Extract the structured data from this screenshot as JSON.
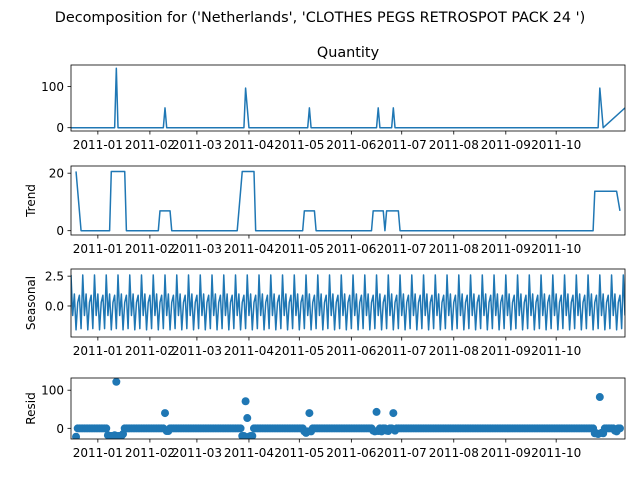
{
  "figure": {
    "suptitle": "Decomposition for ('Netherlands', 'CLOTHES PEGS RETROSPOT PACK 24 ')"
  },
  "colors": {
    "series": "#1f77b4",
    "axis": "#000000",
    "background": "#ffffff"
  },
  "x_axis": {
    "ticks": [
      "2011-01",
      "2011-02",
      "2011-03",
      "2011-04",
      "2011-05",
      "2011-06",
      "2011-07",
      "2011-08",
      "2011-09",
      "2011-10"
    ],
    "range": [
      "2010-12-16",
      "2011-11-11"
    ]
  },
  "chart_data": [
    {
      "type": "line",
      "title": "Quantity",
      "ylabel": "",
      "ylim": [
        -8,
        152
      ],
      "yticks": [
        "0",
        "100"
      ],
      "grid": false,
      "x": [
        "2010-12-16",
        "2010-12-17",
        "2011-01-11",
        "2011-01-12",
        "2011-01-13",
        "2011-02-09",
        "2011-02-10",
        "2011-02-11",
        "2011-03-29",
        "2011-03-30",
        "2011-04-01",
        "2011-05-06",
        "2011-05-07",
        "2011-05-08",
        "2011-06-16",
        "2011-06-17",
        "2011-06-18",
        "2011-06-25",
        "2011-06-26",
        "2011-06-27",
        "2011-10-26",
        "2011-10-27",
        "2011-10-29",
        "2011-11-11"
      ],
      "values": [
        0,
        0,
        0,
        144,
        0,
        0,
        48,
        0,
        0,
        96,
        0,
        0,
        48,
        0,
        0,
        48,
        0,
        0,
        48,
        0,
        0,
        96,
        0,
        48
      ]
    },
    {
      "type": "line",
      "title": "",
      "ylabel": "Trend",
      "ylim": [
        -1.5,
        22.5
      ],
      "yticks": [
        "0",
        "20"
      ],
      "grid": false,
      "x": [
        "2010-12-19",
        "2010-12-22",
        "2011-01-08",
        "2011-01-09",
        "2011-01-17",
        "2011-01-18",
        "2011-02-06",
        "2011-02-07",
        "2011-02-13",
        "2011-02-14",
        "2011-03-25",
        "2011-03-27",
        "2011-03-28",
        "2011-04-04",
        "2011-04-05",
        "2011-05-03",
        "2011-05-04",
        "2011-05-10",
        "2011-05-11",
        "2011-06-13",
        "2011-06-14",
        "2011-06-20",
        "2011-06-21",
        "2011-06-22",
        "2011-06-23",
        "2011-06-29",
        "2011-06-30",
        "2011-10-23",
        "2011-10-24",
        "2011-11-06",
        "2011-11-08"
      ],
      "values": [
        20.6,
        0,
        0,
        20.6,
        20.6,
        0,
        0,
        6.9,
        6.9,
        0,
        0,
        13.7,
        20.6,
        20.6,
        0,
        0,
        6.9,
        6.9,
        0,
        0,
        6.9,
        6.9,
        0,
        6.9,
        6.9,
        6.9,
        0,
        0,
        13.7,
        13.7,
        6.9
      ]
    },
    {
      "type": "line",
      "title": "",
      "ylabel": "Seasonal",
      "ylim": [
        -2.6,
        3.1
      ],
      "yticks": [
        "0.0",
        "2.5"
      ],
      "grid": false,
      "period_days": 7,
      "pattern": [
        2.6,
        -0.8,
        1.0,
        -2.0,
        0.3,
        0.9,
        -1.9
      ],
      "x_start": "2010-12-16",
      "x_end": "2011-11-11"
    },
    {
      "type": "scatter",
      "title": "",
      "ylabel": "Resid",
      "ylim": [
        -28,
        132
      ],
      "yticks": [
        "0",
        "100"
      ],
      "grid": false,
      "x_start": "2010-12-19",
      "x_end": "2011-11-08",
      "baseline": 0,
      "outliers": [
        {
          "x": "2010-12-19",
          "y": -22
        },
        {
          "x": "2011-01-07",
          "y": -18
        },
        {
          "x": "2011-01-08",
          "y": -20
        },
        {
          "x": "2011-01-09",
          "y": -20
        },
        {
          "x": "2011-01-10",
          "y": -20
        },
        {
          "x": "2011-01-11",
          "y": -18
        },
        {
          "x": "2011-01-12",
          "y": 122
        },
        {
          "x": "2011-01-13",
          "y": -20
        },
        {
          "x": "2011-01-14",
          "y": -20
        },
        {
          "x": "2011-01-15",
          "y": -20
        },
        {
          "x": "2011-01-16",
          "y": -15
        },
        {
          "x": "2011-02-10",
          "y": 40
        },
        {
          "x": "2011-02-11",
          "y": -7
        },
        {
          "x": "2011-02-12",
          "y": -7
        },
        {
          "x": "2011-03-28",
          "y": -20
        },
        {
          "x": "2011-03-29",
          "y": -20
        },
        {
          "x": "2011-03-30",
          "y": 71
        },
        {
          "x": "2011-03-31",
          "y": 27
        },
        {
          "x": "2011-04-01",
          "y": -22
        },
        {
          "x": "2011-04-02",
          "y": -20
        },
        {
          "x": "2011-04-03",
          "y": -20
        },
        {
          "x": "2011-05-04",
          "y": -8
        },
        {
          "x": "2011-05-05",
          "y": -12
        },
        {
          "x": "2011-05-06",
          "y": -8
        },
        {
          "x": "2011-05-07",
          "y": 40
        },
        {
          "x": "2011-05-08",
          "y": -8
        },
        {
          "x": "2011-06-14",
          "y": -6
        },
        {
          "x": "2011-06-15",
          "y": -8
        },
        {
          "x": "2011-06-16",
          "y": 43
        },
        {
          "x": "2011-06-17",
          "y": -7
        },
        {
          "x": "2011-06-19",
          "y": -8
        },
        {
          "x": "2011-06-22",
          "y": -6
        },
        {
          "x": "2011-06-23",
          "y": -7
        },
        {
          "x": "2011-06-26",
          "y": 40
        },
        {
          "x": "2011-06-27",
          "y": -6
        },
        {
          "x": "2011-10-24",
          "y": -13
        },
        {
          "x": "2011-10-25",
          "y": -13
        },
        {
          "x": "2011-10-26",
          "y": -15
        },
        {
          "x": "2011-10-27",
          "y": 82
        },
        {
          "x": "2011-10-28",
          "y": -12
        },
        {
          "x": "2011-10-29",
          "y": -13
        },
        {
          "x": "2011-11-05",
          "y": -6
        },
        {
          "x": "2011-11-06",
          "y": -8
        }
      ]
    }
  ]
}
